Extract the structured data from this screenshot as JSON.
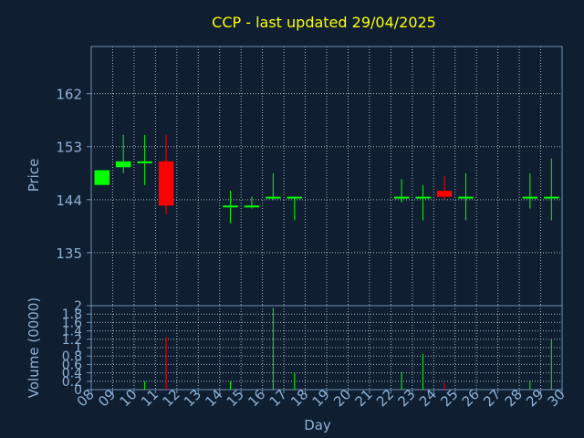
{
  "chart_data": [
    {
      "type": "candlestick",
      "title": "CCP - last updated 29/04/2025",
      "ylabel": "Price",
      "ylim": [
        126,
        170
      ],
      "yticks": [
        "162",
        "153",
        "144",
        "135"
      ],
      "ytick_values": [
        162,
        153,
        144,
        135
      ],
      "grid": true,
      "colors": {
        "up": "#00ff00",
        "down": "#ff0000",
        "flat": "#00ff00"
      },
      "candles": [
        {
          "day": "08",
          "open": 146.5,
          "high": 149,
          "low": 146.5,
          "close": 149
        },
        {
          "day": "09",
          "open": 149.5,
          "high": 155,
          "low": 148.5,
          "close": 150.5
        },
        {
          "day": "10",
          "open": 150.2,
          "high": 155,
          "low": 146.5,
          "close": 150.5
        },
        {
          "day": "11",
          "open": 150.5,
          "high": 155,
          "low": 141.5,
          "close": 143
        },
        {
          "day": "14",
          "open": 143,
          "high": 145.5,
          "low": 140,
          "close": 143
        },
        {
          "day": "15",
          "open": 143,
          "high": 144.5,
          "low": 142.5,
          "close": 143
        },
        {
          "day": "16",
          "open": 144.5,
          "high": 148.5,
          "low": 144,
          "close": 144.5
        },
        {
          "day": "17",
          "open": 144.5,
          "high": 144.5,
          "low": 140.5,
          "close": 144.5
        },
        {
          "day": "22",
          "open": 144.5,
          "high": 147.5,
          "low": 143.5,
          "close": 144.5
        },
        {
          "day": "23",
          "open": 144.5,
          "high": 146.5,
          "low": 140.5,
          "close": 144.5
        },
        {
          "day": "24",
          "open": 145.5,
          "high": 148,
          "low": 144,
          "close": 144.5
        },
        {
          "day": "25",
          "open": 144.5,
          "high": 148.5,
          "low": 140.5,
          "close": 144.5
        },
        {
          "day": "28",
          "open": 144.5,
          "high": 148.5,
          "low": 142.5,
          "close": 144.5
        },
        {
          "day": "29",
          "open": 144.5,
          "high": 151,
          "low": 140.5,
          "close": 144.5
        }
      ]
    },
    {
      "type": "bar",
      "ylabel": "Volume (0000)",
      "xlabel": "Day",
      "ylim": [
        0,
        2
      ],
      "yticks": [
        "0",
        "0.2",
        "0.4",
        "0.6",
        "0.8",
        "1",
        "1.2",
        "1.4",
        "1.6",
        "1.8",
        "2"
      ],
      "ytick_values": [
        0,
        0.2,
        0.4,
        0.6,
        0.8,
        1,
        1.2,
        1.4,
        1.6,
        1.8,
        2
      ],
      "categories": [
        "08",
        "09",
        "10",
        "11",
        "12",
        "13",
        "14",
        "15",
        "16",
        "17",
        "18",
        "19",
        "20",
        "21",
        "22",
        "23",
        "24",
        "25",
        "26",
        "27",
        "28",
        "29",
        "30"
      ],
      "series": [
        {
          "values": [
            0,
            0,
            0.2,
            1.25,
            0,
            0,
            0.2,
            0,
            1.95,
            0.4,
            0,
            0,
            0,
            0,
            0.42,
            0.85,
            0.15,
            0,
            0,
            0,
            0.22,
            1.2,
            0
          ],
          "colors": [
            "#00ff00",
            "#00ff00",
            "#00ff00",
            "#ff0000",
            "#00ff00",
            "#00ff00",
            "#00ff00",
            "#00ff00",
            "#00ff00",
            "#00ff00",
            "#00ff00",
            "#00ff00",
            "#00ff00",
            "#00ff00",
            "#00ff00",
            "#00ff00",
            "#ff0000",
            "#00ff00",
            "#00ff00",
            "#00ff00",
            "#00ff00",
            "#00ff00",
            "#00ff00"
          ]
        }
      ]
    }
  ]
}
